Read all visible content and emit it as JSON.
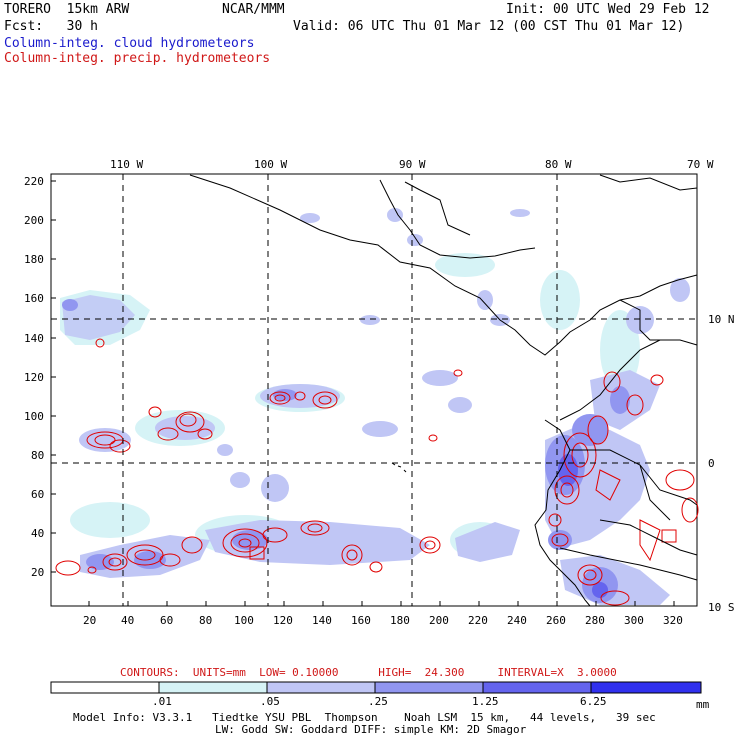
{
  "header": {
    "model": "TORERO  15km ARW",
    "center": "NCAR/MMM",
    "init": "Init: 00 UTC Wed 29 Feb 12",
    "fcst": "Fcst:   30 h",
    "valid": "Valid: 06 UTC Thu 01 Mar 12 (00 CST Thu 01 Mar 12)",
    "line_cloud": "Column-integ. cloud hydrometeors",
    "line_precip": "Column-integ. precip. hydrometeors"
  },
  "map": {
    "lon_labels": [
      "110 W",
      "100 W",
      "90 W",
      "80 W",
      "70 W"
    ],
    "lat_labels": [
      "10 N",
      "0",
      "10 S"
    ],
    "y_ticks": [
      "220",
      "200",
      "180",
      "160",
      "140",
      "120",
      "100",
      "80",
      "60",
      "40",
      "20"
    ],
    "x_ticks": [
      "20",
      "40",
      "60",
      "80",
      "100",
      "120",
      "140",
      "160",
      "180",
      "200",
      "220",
      "240",
      "260",
      "280",
      "300",
      "320"
    ],
    "colors": {
      "land_outline": "#000000",
      "grid": "#000000",
      "precip_contour": "#e00000"
    }
  },
  "contour_info": {
    "text": "CONTOURS:  UNITS=mm  LOW= 0.10000      HIGH=  24.300     INTERVAL=X  3.0000"
  },
  "colorbar": {
    "labels": [
      ".01",
      ".05",
      ".25",
      "1.25",
      "6.25"
    ],
    "units": "mm",
    "colors": [
      "#ffffff",
      "#d6f3f6",
      "#c0c6f5",
      "#9196f0",
      "#6464ee",
      "#3030ee"
    ]
  },
  "footer": {
    "line1": "Model Info: V3.3.1   Tiedtke YSU PBL  Thompson    Noah LSM  15 km,   44 levels,   39 sec",
    "line2": "LW: Godd SW: Goddard DIFF: simple KM: 2D Smagor"
  }
}
